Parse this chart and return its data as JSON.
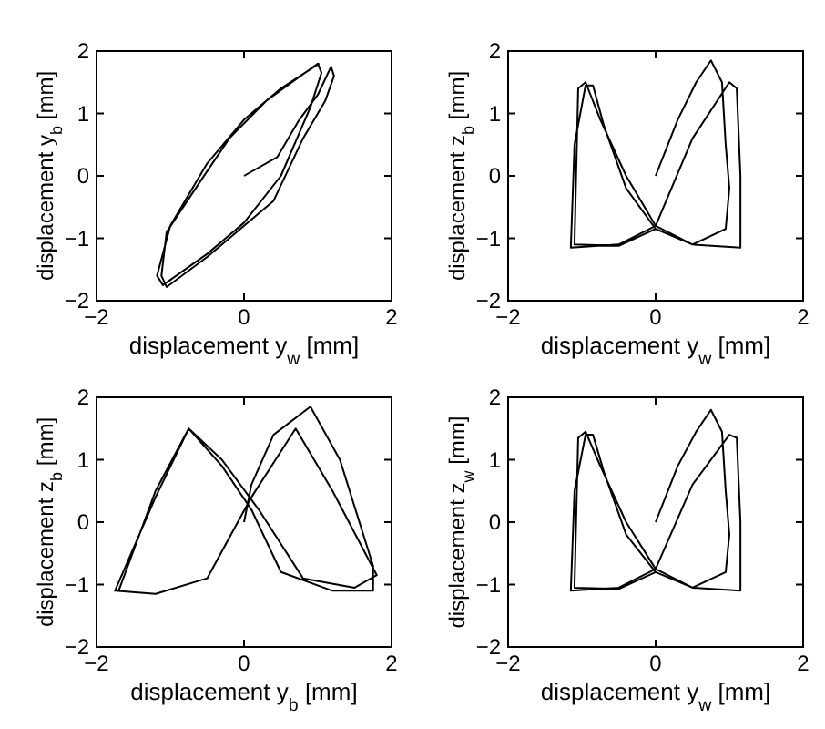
{
  "chart_data": [
    {
      "type": "line",
      "xlabel": "displacement y$_{w}$ [mm]",
      "ylabel": "displacement y$_{b}$ [mm]",
      "xlim": [
        -2,
        2
      ],
      "ylim": [
        -2,
        2
      ],
      "xticks": [
        -2,
        0,
        2
      ],
      "yticks": [
        -2,
        -1,
        0,
        1,
        2
      ],
      "series": [
        {
          "color": "#000000",
          "x": [
            0,
            0.45,
            0.75,
            1.0,
            1.18,
            1.22,
            1.1,
            0.8,
            0.4,
            0,
            -0.5,
            -1.05,
            -1.12,
            -1.05,
            -0.6,
            -0.2,
            0.3,
            1.0,
            1.05,
            0.9,
            0.5,
            0,
            -0.5,
            -1.1,
            -1.18,
            -1.0,
            -0.5,
            0,
            0.5,
            1.02
          ],
          "values": [
            0,
            0.3,
            0.9,
            1.3,
            1.75,
            1.6,
            1.2,
            0.6,
            -0.4,
            -0.8,
            -1.3,
            -1.78,
            -1.6,
            -0.9,
            -0.1,
            0.6,
            1.2,
            1.8,
            1.65,
            1.1,
            0,
            -0.75,
            -1.25,
            -1.75,
            -1.6,
            -0.8,
            0.2,
            0.9,
            1.4,
            1.8
          ]
        }
      ]
    },
    {
      "type": "line",
      "xlabel": "displacement y$_{w}$ [mm]",
      "ylabel": "displacement z$_{b}$ [mm]",
      "xlim": [
        -2,
        2
      ],
      "ylim": [
        -2,
        2
      ],
      "xticks": [
        -2,
        0,
        2
      ],
      "yticks": [
        -2,
        -1,
        0,
        1,
        2
      ],
      "series": [
        {
          "color": "#000000",
          "x": [
            0,
            0.3,
            0.55,
            0.75,
            0.9,
            0.95,
            1.0,
            0.95,
            0.5,
            0,
            -0.4,
            -0.7,
            -0.85,
            -0.95,
            -1.1,
            -1.15,
            -0.5,
            0,
            0.5,
            1.0,
            1.1,
            1.15,
            1.15,
            0.5,
            0,
            -0.4,
            -0.75,
            -0.95,
            -1.05,
            -1.1,
            -0.5,
            0
          ],
          "values": [
            0,
            0.9,
            1.5,
            1.85,
            1.5,
            0.5,
            -0.2,
            -0.85,
            -1.1,
            -0.85,
            -0.2,
            0.8,
            1.45,
            1.45,
            0.5,
            -1.15,
            -1.1,
            -0.8,
            0.6,
            1.5,
            1.4,
            0,
            -1.15,
            -1.1,
            -0.8,
            0,
            0.9,
            1.5,
            1.4,
            -1.1,
            -1.12,
            -0.85
          ]
        }
      ]
    },
    {
      "type": "line",
      "xlabel": "displacement y$_{b}$ [mm]",
      "ylabel": "displacement z$_{b}$ [mm]",
      "xlim": [
        -2,
        2
      ],
      "ylim": [
        -2,
        2
      ],
      "xticks": [
        -2,
        0,
        2
      ],
      "yticks": [
        -2,
        -1,
        0,
        1,
        2
      ],
      "series": [
        {
          "color": "#000000",
          "x": [
            0,
            0.1,
            0.4,
            0.9,
            1.3,
            1.75,
            1.75,
            1.2,
            0.5,
            0.1,
            -0.3,
            -0.75,
            -1.2,
            -1.75,
            -1.2,
            -0.5,
            0.1,
            0.7,
            1.2,
            1.8,
            1.5,
            0.8,
            0.2,
            -0.3,
            -0.75,
            -1.2,
            -1.7
          ],
          "values": [
            0,
            0.6,
            1.4,
            1.85,
            1.0,
            -0.7,
            -1.1,
            -1.1,
            -0.8,
            0.2,
            0.9,
            1.5,
            0.4,
            -1.1,
            -1.15,
            -0.9,
            0.4,
            1.5,
            0.5,
            -0.85,
            -1.05,
            -0.9,
            0.2,
            1.0,
            1.5,
            0.5,
            -1.1
          ]
        }
      ]
    },
    {
      "type": "line",
      "xlabel": "displacement y$_{w}$ [mm]",
      "ylabel": "displacement z$_{w}$ [mm]",
      "xlim": [
        -2,
        2
      ],
      "ylim": [
        -2,
        2
      ],
      "xticks": [
        -2,
        0,
        2
      ],
      "yticks": [
        -2,
        -1,
        0,
        1,
        2
      ],
      "series": [
        {
          "color": "#000000",
          "x": [
            0,
            0.3,
            0.55,
            0.75,
            0.9,
            0.95,
            1.0,
            0.95,
            0.5,
            0,
            -0.4,
            -0.7,
            -0.85,
            -0.95,
            -1.1,
            -1.15,
            -0.5,
            0,
            0.5,
            1.0,
            1.1,
            1.15,
            1.15,
            0.5,
            0,
            -0.4,
            -0.75,
            -0.95,
            -1.05,
            -1.1,
            -0.5,
            0
          ],
          "values": [
            0,
            0.9,
            1.45,
            1.8,
            1.45,
            0.5,
            -0.2,
            -0.8,
            -1.05,
            -0.8,
            -0.2,
            0.8,
            1.4,
            1.4,
            0.5,
            -1.1,
            -1.05,
            -0.75,
            0.6,
            1.4,
            1.35,
            0,
            -1.1,
            -1.05,
            -0.75,
            0,
            0.9,
            1.45,
            1.35,
            -1.05,
            -1.07,
            -0.8
          ]
        }
      ]
    }
  ]
}
